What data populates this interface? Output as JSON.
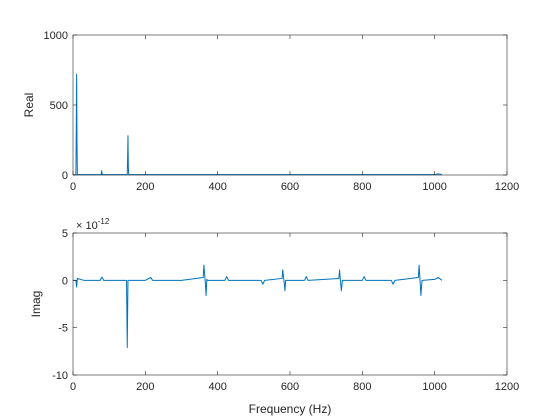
{
  "chart_data": [
    {
      "type": "line",
      "xlabel": "",
      "ylabel": "Real",
      "xlim": [
        0,
        1200
      ],
      "ylim": [
        0,
        1000
      ],
      "xticks": [
        0,
        200,
        400,
        600,
        800,
        1000,
        1200
      ],
      "yticks": [
        0,
        500,
        1000
      ],
      "x_tick_labels": [
        "0",
        "200",
        "400",
        "600",
        "800",
        "1000",
        "1200"
      ],
      "y_tick_labels": [
        "0",
        "500",
        "1000"
      ],
      "line_color": "#0072BD",
      "x": [
        0,
        8,
        9,
        10,
        11,
        12,
        78,
        79,
        80,
        81,
        150,
        151,
        152,
        153,
        154,
        1000,
        1010,
        1020
      ],
      "y": [
        2,
        3,
        300,
        720,
        250,
        3,
        3,
        30,
        20,
        3,
        3,
        120,
        280,
        60,
        3,
        3,
        8,
        3
      ]
    },
    {
      "type": "line",
      "xlabel": "Frequency (Hz)",
      "ylabel": "Imag",
      "xlim": [
        0,
        1200
      ],
      "ylim": [
        -10,
        5
      ],
      "y_exponent_label": "× 10",
      "y_exponent_value": "-12",
      "xticks": [
        0,
        200,
        400,
        600,
        800,
        1000,
        1200
      ],
      "yticks": [
        -10,
        -5,
        0,
        5
      ],
      "x_tick_labels": [
        "0",
        "200",
        "400",
        "600",
        "800",
        "1000",
        "1200"
      ],
      "y_tick_labels": [
        "-10",
        "-5",
        "0",
        "5"
      ],
      "line_color": "#0072BD",
      "x": [
        0,
        8,
        10,
        12,
        30,
        50,
        75,
        80,
        85,
        110,
        148,
        150,
        152,
        200,
        215,
        220,
        300,
        360,
        362,
        366,
        368,
        370,
        372,
        420,
        425,
        430,
        520,
        525,
        530,
        578,
        580,
        584,
        586,
        588,
        640,
        645,
        650,
        735,
        737,
        740,
        742,
        745,
        800,
        805,
        810,
        880,
        885,
        890,
        955,
        957,
        960,
        962,
        965,
        1000,
        1010,
        1020
      ],
      "y": [
        0,
        0,
        -0.7,
        0.2,
        0,
        0,
        0,
        0.35,
        0,
        0,
        0,
        -7.1,
        0,
        0,
        0.3,
        0,
        0,
        0.3,
        1.6,
        -0.3,
        -1.6,
        0.1,
        0,
        0,
        0.4,
        0,
        0,
        -0.4,
        0,
        0.2,
        1.1,
        -0.3,
        -1.1,
        0,
        0,
        0.4,
        0,
        0.2,
        1.1,
        -0.3,
        -1.1,
        0,
        0,
        0.4,
        0,
        0,
        -0.4,
        0,
        0.3,
        1.6,
        -0.3,
        -1.6,
        0,
        0.1,
        0.3,
        0
      ]
    }
  ]
}
